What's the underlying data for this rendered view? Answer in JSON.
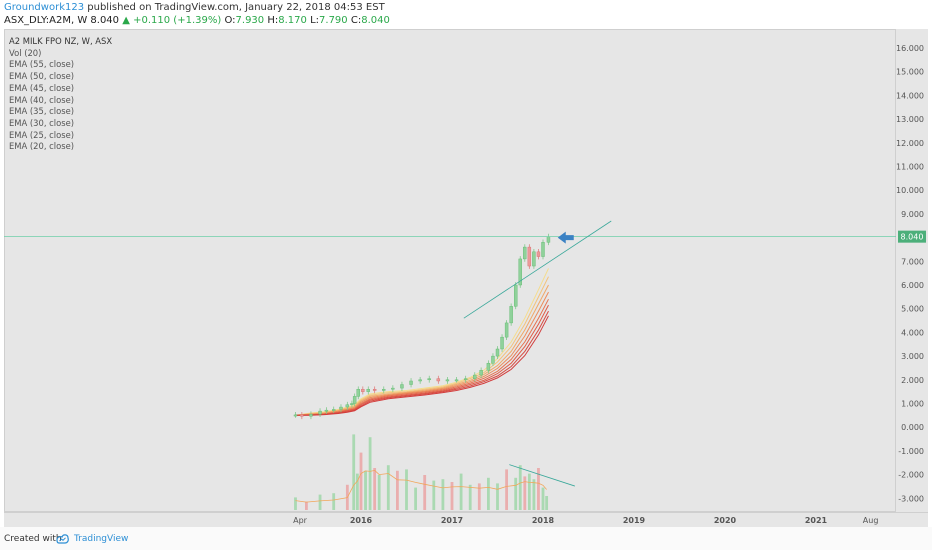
{
  "header": {
    "author": "Groundwork123",
    "published": "published on TradingView.com, January 22, 2018 04:53 EST",
    "symbol": "ASX_DLY:A2M, W",
    "last": "8.040",
    "up_icon": "triangle-up-icon",
    "change": "+0.110 (+1.39%)",
    "o_label": "O:",
    "o_value": "7.930",
    "h_label": "H:",
    "h_value": "8.170",
    "l_label": "L:",
    "l_value": "7.790",
    "c_label": "C:",
    "c_value": "8.040"
  },
  "legend": [
    "A2 MILK FPO NZ, W, ASX",
    "Vol (20)",
    "EMA (55, close)",
    "EMA (50, close)",
    "EMA (45, close)",
    "EMA (40, close)",
    "EMA (35, close)",
    "EMA (30, close)",
    "EMA (25, close)",
    "EMA (20, close)"
  ],
  "footer": {
    "created": "Created with",
    "brand": "TradingView",
    "logo_icon": "tradingview-logo-icon"
  },
  "colors": {
    "up": "#2aa84a",
    "down": "#e35b5b",
    "accent": "#2d8fd5",
    "price_line": "#6fcfa8",
    "ema_light": "#f5dc8c",
    "ema_dark": "#d23c3c"
  },
  "chart_data": {
    "type": "line",
    "title": "A2 MILK FPO NZ, W, ASX",
    "xlabel": "",
    "ylabel": "",
    "x_ticks": [
      "Apr",
      "2016",
      "2017",
      "2018",
      "2019",
      "2020",
      "2021",
      "Aug"
    ],
    "y_ticks": [
      "16.000",
      "15.000",
      "14.000",
      "13.000",
      "12.000",
      "11.000",
      "10.000",
      "9.000",
      "7.000",
      "6.000",
      "5.000",
      "4.000",
      "3.000",
      "2.000",
      "1.000",
      "0.000",
      "-1.000",
      "-2.000",
      "-3.000"
    ],
    "ylim": [
      -3.3,
      16.6
    ],
    "last_price": 8.04,
    "last_price_label": "8.040",
    "price_series": {
      "name": "A2M",
      "time": [
        2015.28,
        2015.35,
        2015.45,
        2015.55,
        2015.62,
        2015.7,
        2015.78,
        2015.85,
        2015.9,
        2015.93,
        2015.97,
        2016.02,
        2016.08,
        2016.15,
        2016.25,
        2016.35,
        2016.45,
        2016.55,
        2016.65,
        2016.75,
        2016.85,
        2016.95,
        2017.05,
        2017.15,
        2017.25,
        2017.32,
        2017.4,
        2017.45,
        2017.5,
        2017.55,
        2017.6,
        2017.65,
        2017.7,
        2017.75,
        2017.8,
        2017.85,
        2017.9,
        2017.95,
        2018.0,
        2018.06
      ],
      "close": [
        0.52,
        0.46,
        0.55,
        0.68,
        0.72,
        0.75,
        0.85,
        0.95,
        1.0,
        1.3,
        1.6,
        1.5,
        1.6,
        1.55,
        1.6,
        1.65,
        1.8,
        1.95,
        2.0,
        2.05,
        1.95,
        2.0,
        2.0,
        2.05,
        2.2,
        2.4,
        2.7,
        3.0,
        3.3,
        3.8,
        4.4,
        5.1,
        6.0,
        7.1,
        7.6,
        6.8,
        7.4,
        7.2,
        7.8,
        8.04
      ]
    },
    "ema_series": [
      {
        "name": "EMA (20, close)",
        "values": [
          0.5,
          0.6,
          0.65,
          0.75,
          0.85,
          0.95,
          1.2,
          1.4,
          1.5,
          1.55,
          1.65,
          1.75,
          1.9,
          2.1,
          2.4,
          2.9,
          3.6,
          4.6,
          5.8,
          6.7
        ]
      },
      {
        "name": "EMA (25, close)",
        "values": [
          0.5,
          0.58,
          0.62,
          0.72,
          0.82,
          0.9,
          1.15,
          1.35,
          1.45,
          1.5,
          1.6,
          1.7,
          1.85,
          2.05,
          2.3,
          2.75,
          3.4,
          4.35,
          5.5,
          6.35
        ]
      },
      {
        "name": "EMA (30, close)",
        "values": [
          0.5,
          0.56,
          0.6,
          0.7,
          0.78,
          0.86,
          1.1,
          1.3,
          1.4,
          1.47,
          1.56,
          1.66,
          1.8,
          1.98,
          2.22,
          2.6,
          3.2,
          4.1,
          5.2,
          6.0
        ]
      },
      {
        "name": "EMA (35, close)",
        "values": [
          0.5,
          0.54,
          0.58,
          0.67,
          0.75,
          0.82,
          1.05,
          1.25,
          1.36,
          1.44,
          1.52,
          1.62,
          1.75,
          1.92,
          2.14,
          2.48,
          3.02,
          3.85,
          4.9,
          5.7
        ]
      },
      {
        "name": "EMA (40, close)",
        "values": [
          0.5,
          0.53,
          0.56,
          0.64,
          0.72,
          0.78,
          1.0,
          1.2,
          1.32,
          1.4,
          1.48,
          1.58,
          1.7,
          1.86,
          2.06,
          2.36,
          2.86,
          3.6,
          4.6,
          5.4
        ]
      },
      {
        "name": "EMA (45, close)",
        "values": [
          0.5,
          0.52,
          0.55,
          0.62,
          0.69,
          0.75,
          0.95,
          1.15,
          1.28,
          1.36,
          1.44,
          1.54,
          1.65,
          1.8,
          1.98,
          2.26,
          2.7,
          3.4,
          4.35,
          5.15
        ]
      },
      {
        "name": "EMA (50, close)",
        "values": [
          0.5,
          0.51,
          0.54,
          0.6,
          0.66,
          0.72,
          0.9,
          1.1,
          1.24,
          1.32,
          1.4,
          1.5,
          1.6,
          1.74,
          1.92,
          2.16,
          2.56,
          3.2,
          4.1,
          4.9
        ]
      },
      {
        "name": "EMA (55, close)",
        "values": [
          0.5,
          0.5,
          0.53,
          0.58,
          0.63,
          0.69,
          0.86,
          1.05,
          1.2,
          1.28,
          1.36,
          1.46,
          1.55,
          1.68,
          1.85,
          2.08,
          2.44,
          3.02,
          3.9,
          4.7
        ]
      }
    ],
    "ema_time": [
      2015.28,
      2015.45,
      2015.6,
      2015.75,
      2015.85,
      2015.93,
      2016.0,
      2016.1,
      2016.3,
      2016.5,
      2016.7,
      2016.9,
      2017.05,
      2017.2,
      2017.35,
      2017.5,
      2017.65,
      2017.8,
      2017.95,
      2018.06
    ],
    "volume": {
      "name": "Vol (20)",
      "time": [
        2015.28,
        2015.4,
        2015.55,
        2015.7,
        2015.85,
        2015.92,
        2015.96,
        2016.0,
        2016.05,
        2016.1,
        2016.15,
        2016.2,
        2016.3,
        2016.4,
        2016.5,
        2016.6,
        2016.7,
        2016.8,
        2016.9,
        2017.0,
        2017.1,
        2017.2,
        2017.3,
        2017.4,
        2017.5,
        2017.6,
        2017.7,
        2017.75,
        2017.8,
        2017.85,
        2017.9,
        2017.95,
        2018.0,
        2018.04
      ],
      "values": [
        0.9,
        0.6,
        1.1,
        1.2,
        1.8,
        5.4,
        2.6,
        4.1,
        2.8,
        5.2,
        3.0,
        2.5,
        3.2,
        2.8,
        2.9,
        1.6,
        2.5,
        2.1,
        2.2,
        2.0,
        2.6,
        1.8,
        1.9,
        2.3,
        1.9,
        2.9,
        2.3,
        3.2,
        2.4,
        2.6,
        2.2,
        3.0,
        1.6,
        1.0
      ]
    },
    "trendlines": [
      {
        "from": [
          2017.13,
          4.6
        ],
        "to": [
          2018.75,
          8.7
        ]
      },
      {
        "from": [
          2017.63,
          -1.4
        ],
        "to": [
          2018.35,
          -3.1
        ]
      }
    ],
    "annotation": "left-arrow marker at 2018.25, 8.0",
    "grid": false,
    "legend_position": "top-left"
  }
}
